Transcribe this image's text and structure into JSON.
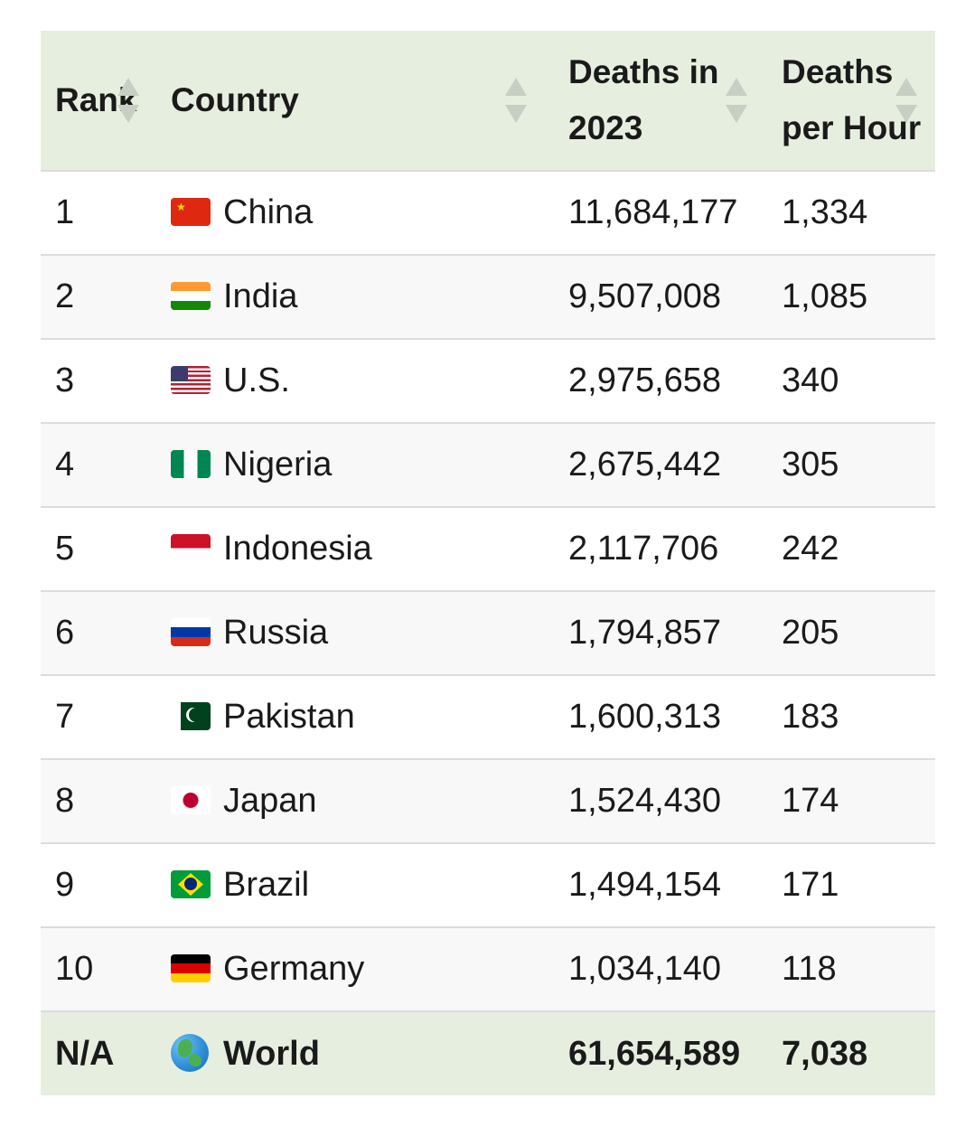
{
  "headers": {
    "rank": "Rank",
    "country": "Country",
    "deaths_line1": "Deaths in",
    "deaths_line2": "2023",
    "hour_line1": "Deaths",
    "hour_line2": "per Hour"
  },
  "rows": [
    {
      "rank": "1",
      "country": "China",
      "flag": "china-flag",
      "deaths": "11,684,177",
      "per_hour": "1,334"
    },
    {
      "rank": "2",
      "country": "India",
      "flag": "india-flag",
      "deaths": "9,507,008",
      "per_hour": "1,085"
    },
    {
      "rank": "3",
      "country": "U.S.",
      "flag": "usa-flag",
      "deaths": "2,975,658",
      "per_hour": "340"
    },
    {
      "rank": "4",
      "country": "Nigeria",
      "flag": "nigeria-flag",
      "deaths": "2,675,442",
      "per_hour": "305"
    },
    {
      "rank": "5",
      "country": "Indonesia",
      "flag": "indonesia-flag",
      "deaths": "2,117,706",
      "per_hour": "242"
    },
    {
      "rank": "6",
      "country": "Russia",
      "flag": "russia-flag",
      "deaths": "1,794,857",
      "per_hour": "205"
    },
    {
      "rank": "7",
      "country": "Pakistan",
      "flag": "pakistan-flag",
      "deaths": "1,600,313",
      "per_hour": "183"
    },
    {
      "rank": "8",
      "country": "Japan",
      "flag": "japan-flag",
      "deaths": "1,524,430",
      "per_hour": "174"
    },
    {
      "rank": "9",
      "country": "Brazil",
      "flag": "brazil-flag",
      "deaths": "1,494,154",
      "per_hour": "171"
    },
    {
      "rank": "10",
      "country": "Germany",
      "flag": "germany-flag",
      "deaths": "1,034,140",
      "per_hour": "118"
    }
  ],
  "total": {
    "rank": "N/A",
    "country": "World",
    "icon": "globe-icon",
    "deaths": "61,654,589",
    "per_hour": "7,038"
  },
  "colors": {
    "header_bg": "#e6efdf",
    "row_alt": "#f8f8f8",
    "border": "#dcdcdc",
    "sort_arrow": "#c7cec3"
  }
}
